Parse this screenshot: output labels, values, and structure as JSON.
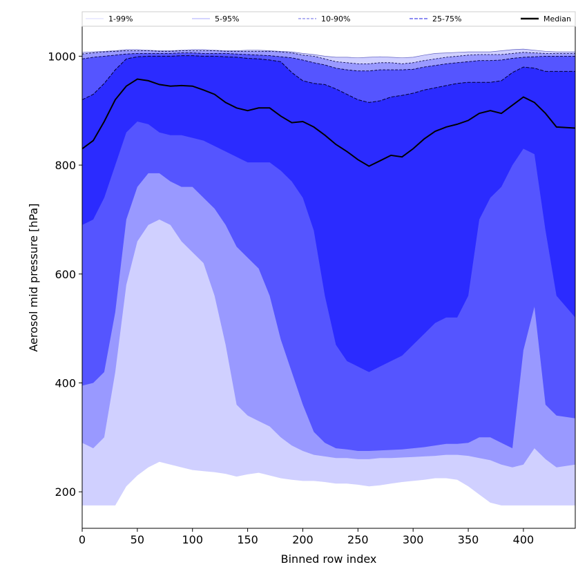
{
  "chart_data": {
    "type": "area",
    "title": "",
    "xlabel": "Binned row index",
    "ylabel": "Aerosol mid pressure [hPa]",
    "xlim": [
      0,
      447
    ],
    "ylim": [
      1055,
      133
    ],
    "y_inverted": false,
    "xticks": [
      0,
      50,
      100,
      150,
      200,
      250,
      300,
      350,
      400
    ],
    "yticks": [
      1000,
      800,
      600,
      400,
      200
    ],
    "grid": false,
    "legend_position": "top, above plot, single row",
    "x": [
      0,
      10,
      20,
      30,
      40,
      50,
      60,
      70,
      80,
      90,
      100,
      110,
      120,
      130,
      140,
      150,
      160,
      170,
      180,
      190,
      200,
      210,
      220,
      230,
      240,
      250,
      260,
      270,
      280,
      290,
      300,
      310,
      320,
      330,
      340,
      350,
      360,
      370,
      380,
      390,
      400,
      410,
      420,
      430,
      447
    ],
    "series": [
      {
        "name": "1-99%",
        "style": "solid",
        "color": "#d9d9ff",
        "fill": "#d0d0ff",
        "lower": [
          175,
          175,
          175,
          175,
          210,
          230,
          245,
          255,
          250,
          245,
          240,
          238,
          236,
          233,
          228,
          232,
          235,
          230,
          225,
          222,
          220,
          220,
          218,
          215,
          215,
          213,
          210,
          212,
          215,
          218,
          220,
          222,
          225,
          225,
          222,
          210,
          195,
          180,
          175,
          175,
          175,
          175,
          175,
          175,
          175
        ],
        "upper": [
          1007,
          1008,
          1009,
          1010,
          1012,
          1012,
          1011,
          1010,
          1010,
          1011,
          1012,
          1012,
          1011,
          1010,
          1010,
          1011,
          1011,
          1010,
          1009,
          1008,
          1005,
          1003,
          1000,
          998,
          998,
          997,
          998,
          999,
          998,
          997,
          998,
          1002,
          1005,
          1006,
          1007,
          1008,
          1008,
          1008,
          1010,
          1012,
          1013,
          1011,
          1009,
          1008,
          1008
        ]
      },
      {
        "name": "5-95%",
        "style": "solid",
        "color": "#aaaaff",
        "fill": "#9999ff",
        "lower": [
          290,
          280,
          300,
          420,
          580,
          660,
          690,
          700,
          690,
          660,
          640,
          620,
          560,
          470,
          360,
          340,
          330,
          320,
          300,
          285,
          275,
          268,
          265,
          262,
          262,
          260,
          260,
          262,
          262,
          263,
          264,
          265,
          266,
          268,
          268,
          266,
          262,
          258,
          250,
          245,
          250,
          280,
          260,
          245,
          250
        ]
      },
      {
        "name": "10-90%",
        "style": "dashed",
        "color": "#9999ee",
        "fill": "#5555ff",
        "lower": [
          395,
          400,
          420,
          530,
          700,
          760,
          785,
          785,
          770,
          760,
          760,
          740,
          720,
          690,
          650,
          630,
          610,
          560,
          480,
          420,
          360,
          310,
          290,
          280,
          278,
          275,
          275,
          276,
          277,
          278,
          280,
          282,
          285,
          288,
          288,
          290,
          300,
          300,
          290,
          280,
          460,
          540,
          360,
          340,
          335
        ],
        "upper": [
          1004,
          1006,
          1008,
          1009,
          1010,
          1010,
          1010,
          1009,
          1009,
          1010,
          1010,
          1010,
          1010,
          1009,
          1009,
          1009,
          1009,
          1009,
          1008,
          1006,
          1002,
          1000,
          995,
          990,
          988,
          986,
          986,
          988,
          988,
          986,
          988,
          992,
          995,
          998,
          1000,
          1002,
          1003,
          1003,
          1003,
          1005,
          1007,
          1006,
          1005,
          1005,
          1005
        ]
      },
      {
        "name": "25-75%",
        "style": "dashed",
        "color": "#6666ee",
        "fill": "#2b2bff",
        "lower": [
          690,
          700,
          740,
          800,
          860,
          880,
          875,
          860,
          855,
          855,
          850,
          845,
          835,
          825,
          815,
          805,
          805,
          805,
          790,
          770,
          740,
          680,
          560,
          470,
          440,
          430,
          420,
          430,
          440,
          450,
          470,
          490,
          510,
          520,
          520,
          560,
          700,
          740,
          760,
          800,
          830,
          820,
          680,
          560,
          520
        ],
        "upper": [
          995,
          998,
          1000,
          1002,
          1004,
          1005,
          1005,
          1005,
          1005,
          1006,
          1006,
          1005,
          1005,
          1005,
          1004,
          1003,
          1002,
          1001,
          999,
          997,
          993,
          988,
          984,
          978,
          975,
          973,
          973,
          975,
          975,
          975,
          976,
          980,
          983,
          986,
          988,
          990,
          992,
          992,
          993,
          996,
          998,
          999,
          1000,
          1000,
          1000
        ]
      },
      {
        "name": "Median",
        "style": "solid",
        "color": "#000000",
        "values": [
          830,
          845,
          880,
          920,
          945,
          958,
          955,
          948,
          945,
          946,
          945,
          938,
          930,
          915,
          905,
          900,
          905,
          905,
          890,
          878,
          880,
          870,
          855,
          838,
          825,
          810,
          798,
          808,
          818,
          815,
          830,
          848,
          862,
          870,
          875,
          882,
          895,
          900,
          895,
          910,
          925,
          915,
          895,
          870,
          868
        ]
      }
    ],
    "inner_bounds": {
      "lower_5_95_top": [
        920,
        930,
        950,
        975,
        995,
        999,
        1000,
        1000,
        1000,
        1001,
        1001,
        1000,
        1000,
        999,
        998,
        996,
        995,
        993,
        990,
        970,
        955,
        950,
        948,
        940,
        930,
        920,
        915,
        918,
        925,
        928,
        932,
        938,
        942,
        946,
        950,
        952,
        952,
        952,
        955,
        970,
        980,
        978,
        972,
        972,
        972
      ]
    }
  },
  "legend": {
    "items": [
      "1-99%",
      "5-95%",
      "10-90%",
      "25-75%",
      "Median"
    ]
  }
}
